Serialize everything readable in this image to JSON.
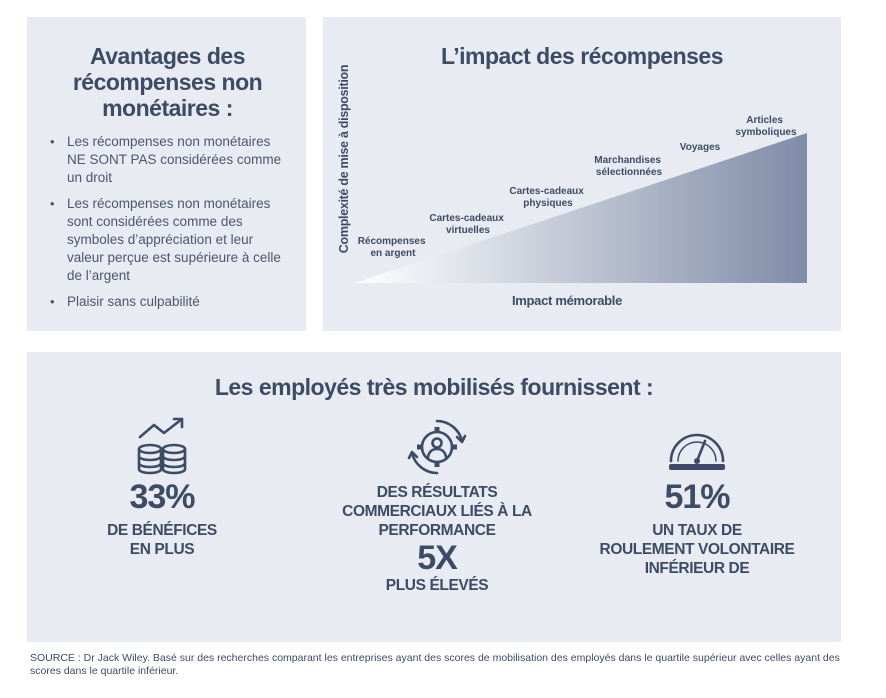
{
  "left": {
    "title": "Avantages des récompenses non monétaires :",
    "items": [
      "Les récompenses non monétaires NE SONT PAS considérées comme un droit",
      "Les récompenses non monétaires sont considérées comme des symboles d’appréciation et leur valeur perçue est supérieure à celle de l’argent",
      "Plaisir sans culpabilité"
    ]
  },
  "chart": {
    "title": "L’impact des récompenses",
    "y_axis": "Complexité de mise à disposition",
    "x_axis": "Impact mémorable",
    "steps": [
      [
        "Récompenses",
        "en argent"
      ],
      [
        "Cartes-cadeaux",
        "virtuelles"
      ],
      [
        "Cartes-cadeaux",
        "physiques"
      ],
      [
        "Marchandises",
        "sélectionnées"
      ],
      [
        "Voyages"
      ],
      [
        "Articles",
        "symboliques"
      ]
    ],
    "gradient_start": "#ffffff",
    "gradient_end": "#7f8ba7"
  },
  "bottom": {
    "title": "Les employés très mobilisés fournissent :",
    "stat1": {
      "value": "33%",
      "line1": "DE BÉNÉFICES",
      "line2": "EN PLUS",
      "icon": "coins-growth-icon"
    },
    "stat2": {
      "line1": "DES RÉSULTATS",
      "line2": "COMMERCIAUX LIÉS À LA",
      "line3": "PERFORMANCE",
      "value": "5X",
      "line4": "PLUS ÉLEVÉS",
      "icon": "gear-person-icon"
    },
    "stat3": {
      "value": "51%",
      "line1": "UN TAUX DE",
      "line2": "ROULEMENT VOLONTAIRE",
      "line3": "INFÉRIEUR DE",
      "icon": "gauge-icon"
    }
  },
  "source": "SOURCE : Dr Jack Wiley. Basé sur des recherches comparant les entreprises ayant des scores de mobilisation des employés dans le quartile supérieur avec celles ayant des scores dans le quartile inférieur.",
  "colors": {
    "panel": "#e8ebf1",
    "text": "#3d4b66"
  }
}
